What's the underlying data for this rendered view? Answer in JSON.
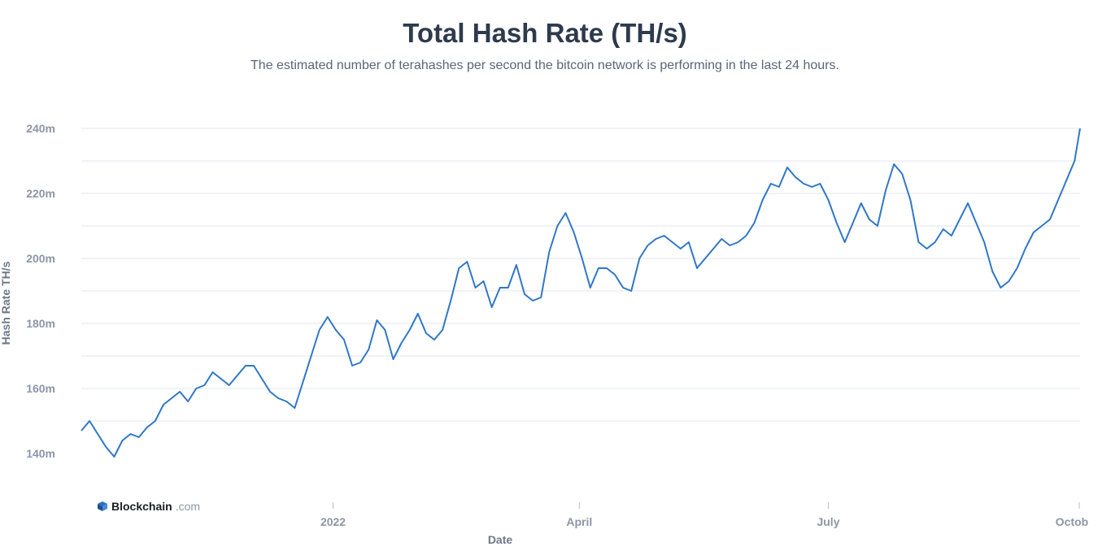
{
  "title": "Total Hash Rate (TH/s)",
  "subtitle": "The estimated number of terahashes per second the bitcoin network is performing in the last 24 hours.",
  "logo": {
    "name": "Blockchain",
    "domain": ".com"
  },
  "colors": {
    "line": "#2f77c8",
    "grid": "#e3e6ec",
    "text": "#2e3a4d",
    "tick": "#8d95a6"
  },
  "chart_data": {
    "type": "line",
    "title": "Total Hash Rate (TH/s)",
    "xlabel": "Date",
    "ylabel": "Hash Rate TH/s",
    "ylim": [
      130,
      242
    ],
    "y_ticks": [
      {
        "value": 140,
        "label": "140m"
      },
      {
        "value": 160,
        "label": "160m"
      },
      {
        "value": 180,
        "label": "180m"
      },
      {
        "value": 200,
        "label": "200m"
      },
      {
        "value": 220,
        "label": "220m"
      },
      {
        "value": 240,
        "label": "240m"
      }
    ],
    "x_ticks": [
      {
        "date": "2022-01-01",
        "label": "2022"
      },
      {
        "date": "2022-04-01",
        "label": "April"
      },
      {
        "date": "2022-07-01",
        "label": "July"
      },
      {
        "date": "2022-10-01",
        "label": "Octob"
      }
    ],
    "grid": true,
    "series": [
      {
        "points": [
          [
            "2021-10-01",
            147
          ],
          [
            "2021-10-04",
            150
          ],
          [
            "2021-10-07",
            146
          ],
          [
            "2021-10-10",
            142
          ],
          [
            "2021-10-13",
            139
          ],
          [
            "2021-10-16",
            144
          ],
          [
            "2021-10-19",
            146
          ],
          [
            "2021-10-22",
            145
          ],
          [
            "2021-10-25",
            148
          ],
          [
            "2021-10-28",
            150
          ],
          [
            "2021-10-31",
            155
          ],
          [
            "2021-11-03",
            157
          ],
          [
            "2021-11-06",
            159
          ],
          [
            "2021-11-09",
            156
          ],
          [
            "2021-11-12",
            160
          ],
          [
            "2021-11-15",
            161
          ],
          [
            "2021-11-18",
            165
          ],
          [
            "2021-11-21",
            163
          ],
          [
            "2021-11-24",
            161
          ],
          [
            "2021-11-27",
            164
          ],
          [
            "2021-11-30",
            167
          ],
          [
            "2021-12-03",
            167
          ],
          [
            "2021-12-06",
            163
          ],
          [
            "2021-12-09",
            159
          ],
          [
            "2021-12-12",
            157
          ],
          [
            "2021-12-15",
            156
          ],
          [
            "2021-12-18",
            154
          ],
          [
            "2021-12-21",
            162
          ],
          [
            "2021-12-24",
            170
          ],
          [
            "2021-12-27",
            178
          ],
          [
            "2021-12-30",
            182
          ],
          [
            "2022-01-02",
            178
          ],
          [
            "2022-01-05",
            175
          ],
          [
            "2022-01-08",
            167
          ],
          [
            "2022-01-11",
            168
          ],
          [
            "2022-01-14",
            172
          ],
          [
            "2022-01-17",
            181
          ],
          [
            "2022-01-20",
            178
          ],
          [
            "2022-01-23",
            169
          ],
          [
            "2022-01-26",
            174
          ],
          [
            "2022-01-29",
            178
          ],
          [
            "2022-02-01",
            183
          ],
          [
            "2022-02-04",
            177
          ],
          [
            "2022-02-07",
            175
          ],
          [
            "2022-02-10",
            178
          ],
          [
            "2022-02-13",
            187
          ],
          [
            "2022-02-16",
            197
          ],
          [
            "2022-02-19",
            199
          ],
          [
            "2022-02-22",
            191
          ],
          [
            "2022-02-25",
            193
          ],
          [
            "2022-02-28",
            185
          ],
          [
            "2022-03-03",
            191
          ],
          [
            "2022-03-06",
            191
          ],
          [
            "2022-03-09",
            198
          ],
          [
            "2022-03-12",
            189
          ],
          [
            "2022-03-15",
            187
          ],
          [
            "2022-03-18",
            188
          ],
          [
            "2022-03-21",
            202
          ],
          [
            "2022-03-24",
            210
          ],
          [
            "2022-03-27",
            214
          ],
          [
            "2022-03-30",
            208
          ],
          [
            "2022-04-02",
            200
          ],
          [
            "2022-04-05",
            191
          ],
          [
            "2022-04-08",
            197
          ],
          [
            "2022-04-11",
            197
          ],
          [
            "2022-04-14",
            195
          ],
          [
            "2022-04-17",
            191
          ],
          [
            "2022-04-20",
            190
          ],
          [
            "2022-04-23",
            200
          ],
          [
            "2022-04-26",
            204
          ],
          [
            "2022-04-29",
            206
          ],
          [
            "2022-05-02",
            207
          ],
          [
            "2022-05-05",
            205
          ],
          [
            "2022-05-08",
            203
          ],
          [
            "2022-05-11",
            205
          ],
          [
            "2022-05-14",
            197
          ],
          [
            "2022-05-17",
            200
          ],
          [
            "2022-05-20",
            203
          ],
          [
            "2022-05-23",
            206
          ],
          [
            "2022-05-26",
            204
          ],
          [
            "2022-05-29",
            205
          ],
          [
            "2022-06-01",
            207
          ],
          [
            "2022-06-04",
            211
          ],
          [
            "2022-06-07",
            218
          ],
          [
            "2022-06-10",
            223
          ],
          [
            "2022-06-13",
            222
          ],
          [
            "2022-06-16",
            228
          ],
          [
            "2022-06-19",
            225
          ],
          [
            "2022-06-22",
            223
          ],
          [
            "2022-06-25",
            222
          ],
          [
            "2022-06-28",
            223
          ],
          [
            "2022-07-01",
            218
          ],
          [
            "2022-07-04",
            211
          ],
          [
            "2022-07-07",
            205
          ],
          [
            "2022-07-10",
            211
          ],
          [
            "2022-07-13",
            217
          ],
          [
            "2022-07-16",
            212
          ],
          [
            "2022-07-19",
            210
          ],
          [
            "2022-07-22",
            221
          ],
          [
            "2022-07-25",
            229
          ],
          [
            "2022-07-28",
            226
          ],
          [
            "2022-07-31",
            218
          ],
          [
            "2022-08-03",
            205
          ],
          [
            "2022-08-06",
            203
          ],
          [
            "2022-08-09",
            205
          ],
          [
            "2022-08-12",
            209
          ],
          [
            "2022-08-15",
            207
          ],
          [
            "2022-08-18",
            212
          ],
          [
            "2022-08-21",
            217
          ],
          [
            "2022-08-24",
            211
          ],
          [
            "2022-08-27",
            205
          ],
          [
            "2022-08-30",
            196
          ],
          [
            "2022-09-02",
            191
          ],
          [
            "2022-09-05",
            193
          ],
          [
            "2022-09-08",
            197
          ],
          [
            "2022-09-11",
            203
          ],
          [
            "2022-09-14",
            208
          ],
          [
            "2022-09-17",
            210
          ],
          [
            "2022-09-20",
            212
          ],
          [
            "2022-09-23",
            218
          ],
          [
            "2022-09-26",
            224
          ],
          [
            "2022-09-29",
            230
          ],
          [
            "2022-10-01",
            240
          ]
        ]
      }
    ]
  }
}
